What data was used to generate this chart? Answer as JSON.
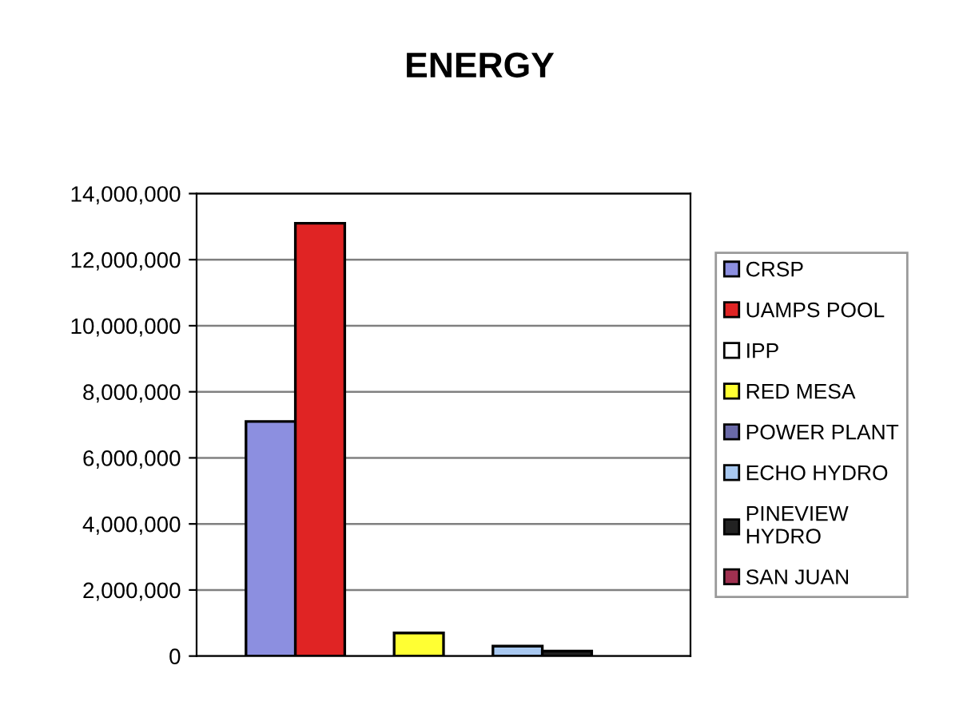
{
  "chart_data": {
    "type": "bar",
    "title": "ENERGY",
    "categories": [
      null
    ],
    "series": [
      {
        "name": "CRSP",
        "color": "#8c8fe0",
        "values": [
          7100000
        ]
      },
      {
        "name": "UAMPS POOL",
        "color": "#e02424",
        "values": [
          13100000
        ]
      },
      {
        "name": "IPP",
        "color": "#ffffff",
        "values": [
          0
        ]
      },
      {
        "name": "RED MESA",
        "color": "#ffff33",
        "values": [
          700000
        ]
      },
      {
        "name": "POWER PLANT",
        "color": "#6a6aa8",
        "values": [
          0
        ]
      },
      {
        "name": "ECHO HYDRO",
        "color": "#a8c8f0",
        "values": [
          300000
        ]
      },
      {
        "name": "PINEVIEW\nHYDRO",
        "color": "#222222",
        "values": [
          150000
        ]
      },
      {
        "name": "SAN JUAN",
        "color": "#a03050",
        "values": [
          0
        ]
      }
    ],
    "ylim": [
      0,
      14000000
    ],
    "yticks": [
      {
        "value": 0,
        "label": "0"
      },
      {
        "value": 2000000,
        "label": "2,000,000"
      },
      {
        "value": 4000000,
        "label": "4,000,000"
      },
      {
        "value": 6000000,
        "label": "6,000,000"
      },
      {
        "value": 8000000,
        "label": "8,000,000"
      },
      {
        "value": 10000000,
        "label": "10,000,000"
      },
      {
        "value": 12000000,
        "label": "12,000,000"
      },
      {
        "value": 14000000,
        "label": "14,000,000"
      }
    ],
    "grid": "y",
    "legend": "right"
  }
}
